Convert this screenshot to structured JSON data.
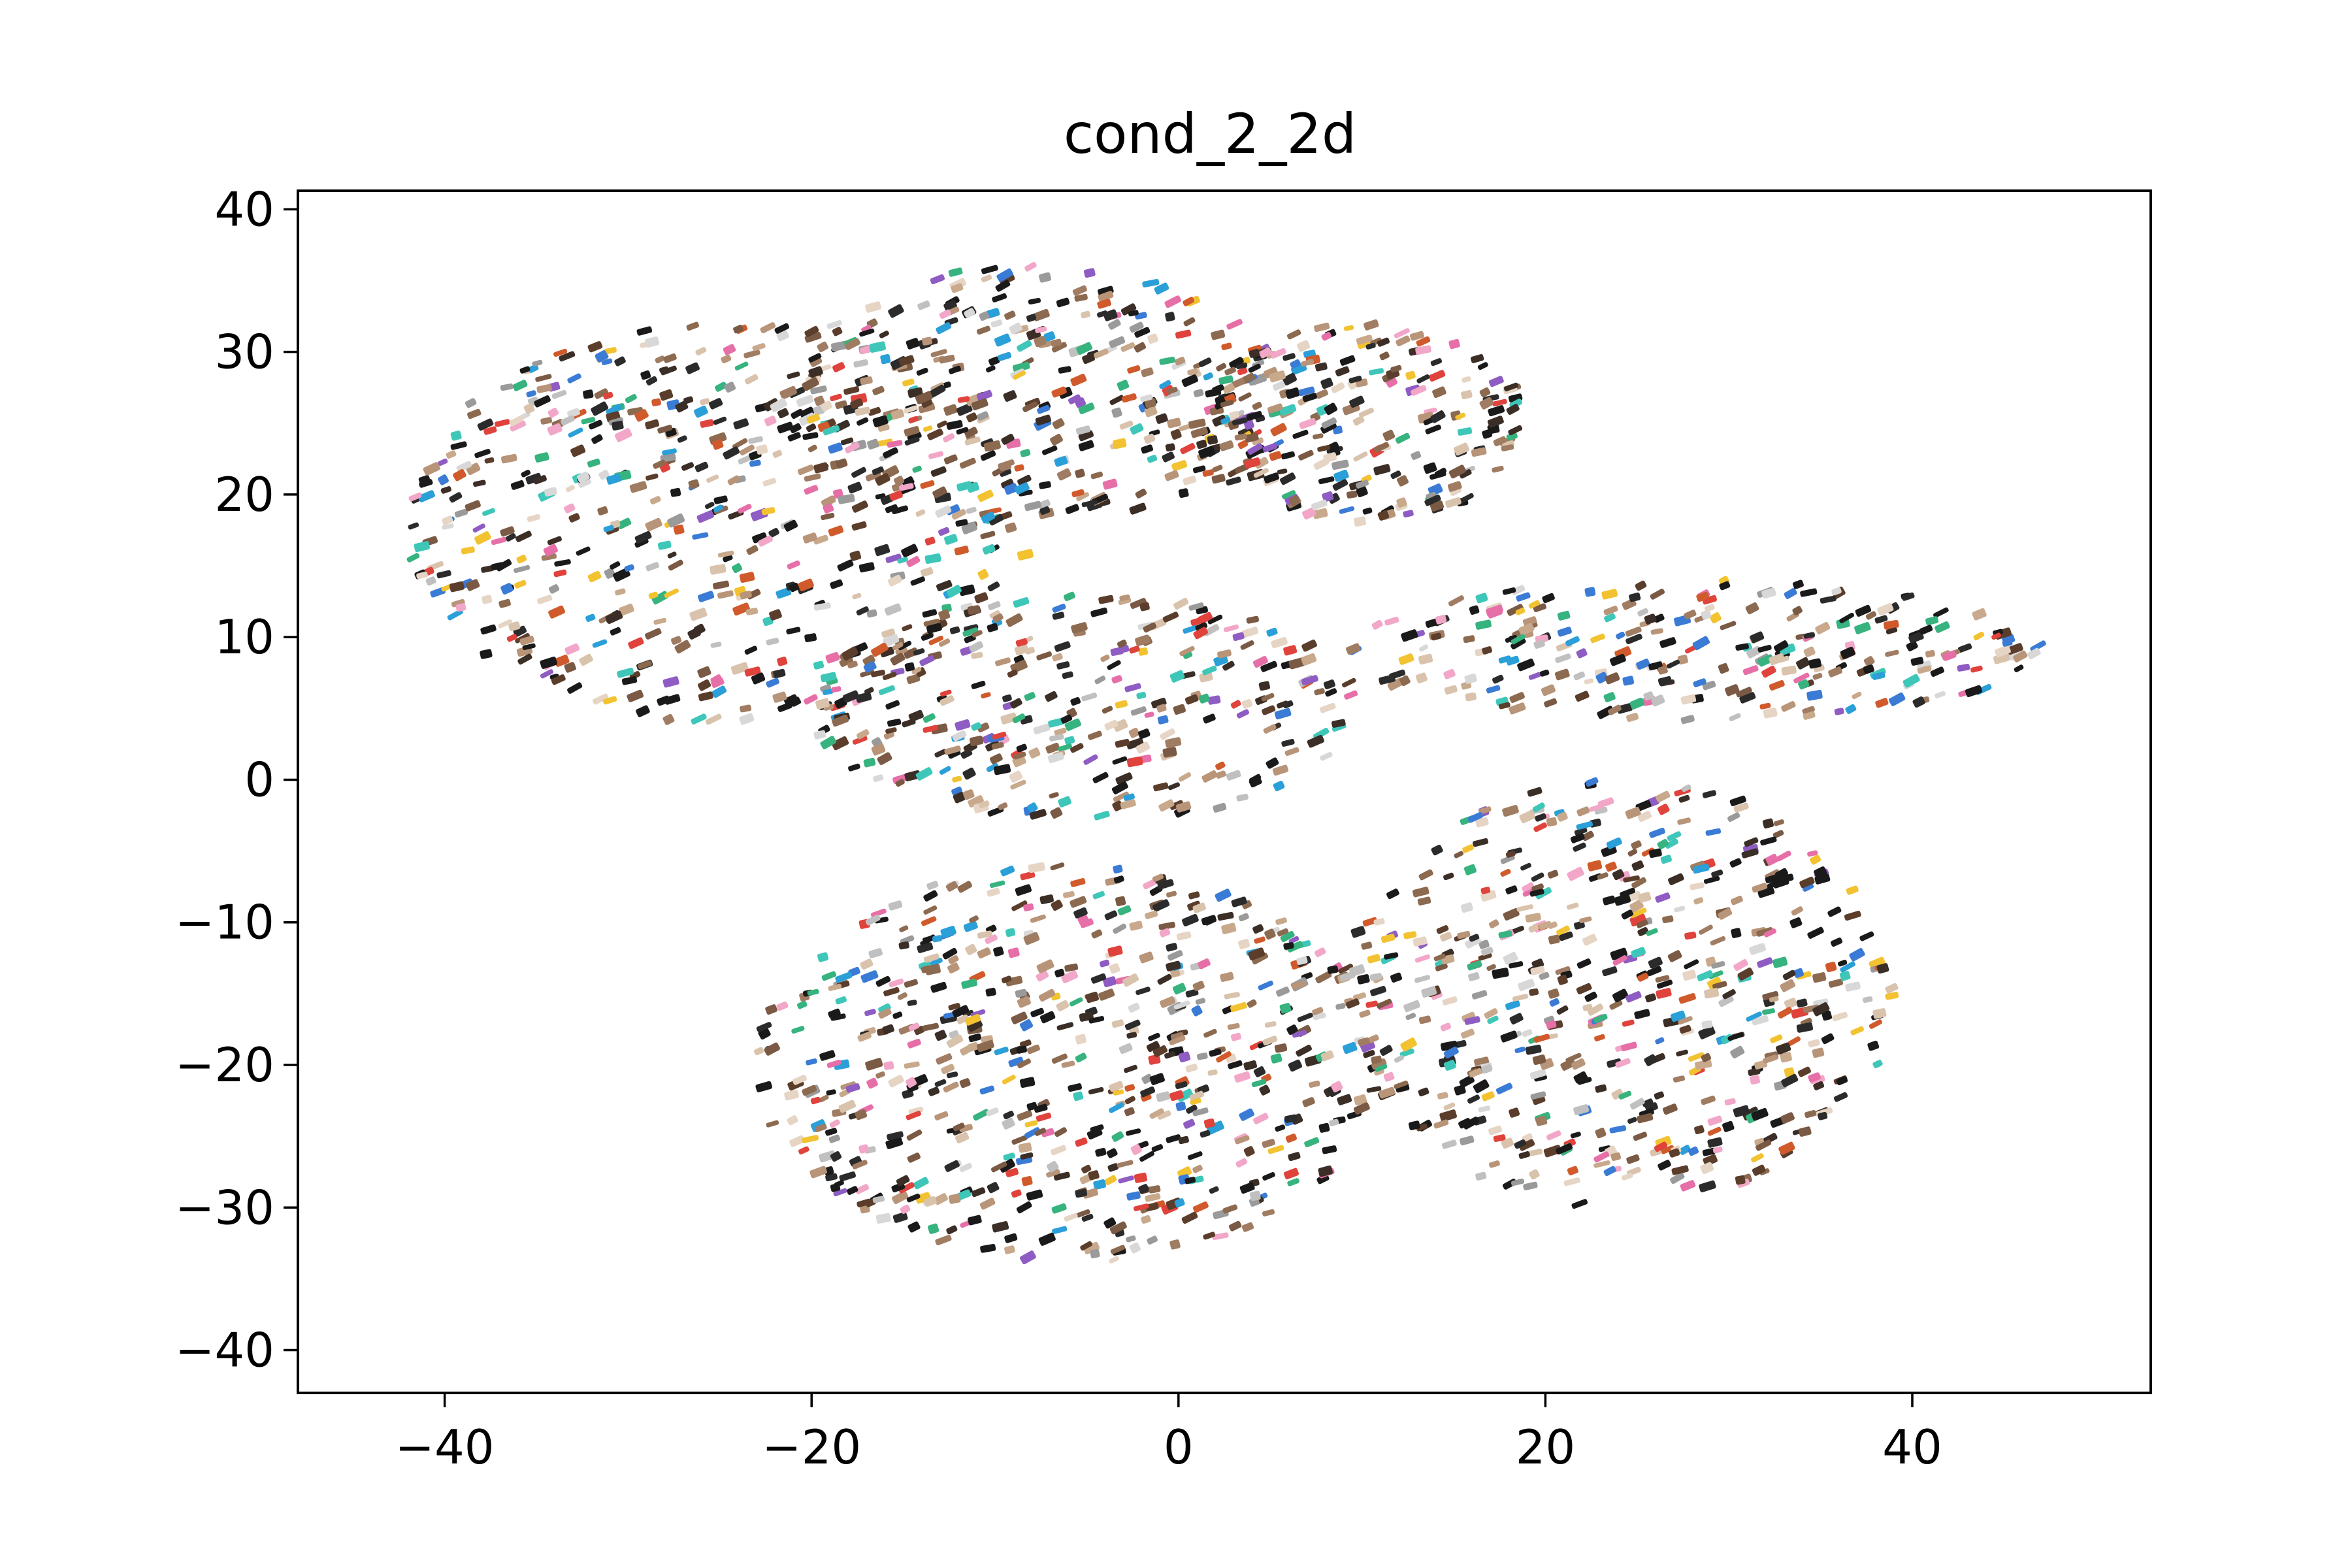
{
  "chart_data": {
    "type": "scatter",
    "title": "cond_2_2d",
    "xlabel": "",
    "ylabel": "",
    "xlim": [
      -48,
      53
    ],
    "ylim": [
      -43,
      41.3
    ],
    "grid": false,
    "legend": "none",
    "x_ticks": [
      {
        "value": -40,
        "label": "−40"
      },
      {
        "value": -20,
        "label": "−20"
      },
      {
        "value": 0,
        "label": "0"
      },
      {
        "value": 20,
        "label": "20"
      },
      {
        "value": 40,
        "label": "40"
      }
    ],
    "y_ticks": [
      {
        "value": 40,
        "label": "40"
      },
      {
        "value": 30,
        "label": "30"
      },
      {
        "value": 20,
        "label": "20"
      },
      {
        "value": 10,
        "label": "10"
      },
      {
        "value": 0,
        "label": "0"
      },
      {
        "value": -10,
        "label": "−10"
      },
      {
        "value": -20,
        "label": "−20"
      },
      {
        "value": -30,
        "label": "−30"
      },
      {
        "value": -40,
        "label": "−40"
      }
    ],
    "point_colors": [
      "#1a1a1a",
      "#2b2b2b",
      "#3a2e26",
      "#5a3d2b",
      "#7a5a44",
      "#8c6a50",
      "#a07c63",
      "#b89478",
      "#c8a98c",
      "#d9c3ad",
      "#e6d5c4",
      "#9a9a9a",
      "#c0c0c0",
      "#d8d8d8",
      "#e0423c",
      "#e66fa8",
      "#f2a6c8",
      "#3a7bd5",
      "#2a9fd8",
      "#36b37e",
      "#3ec7b9",
      "#f2c230",
      "#8e5cc2",
      "#d05a2b"
    ],
    "clusters": [
      {
        "name_hint": "top-left",
        "cx": -25,
        "cy": 18,
        "rx": 17,
        "ry": 14,
        "n": 520
      },
      {
        "name_hint": "top-center",
        "cx": -8,
        "cy": 27,
        "rx": 14,
        "ry": 9,
        "n": 340
      },
      {
        "name_hint": "top-right",
        "cx": 10,
        "cy": 25,
        "rx": 9,
        "ry": 7,
        "n": 220
      },
      {
        "name_hint": "center",
        "cx": -5,
        "cy": 5,
        "rx": 15,
        "ry": 8,
        "n": 300
      },
      {
        "name_hint": "right-arm",
        "cx": 28,
        "cy": 9,
        "rx": 19,
        "ry": 5,
        "n": 260
      },
      {
        "name_hint": "bottom-left",
        "cx": -6,
        "cy": -20,
        "rx": 17,
        "ry": 14,
        "n": 620
      },
      {
        "name_hint": "bottom-right",
        "cx": 24,
        "cy": -15,
        "rx": 15,
        "ry": 15,
        "n": 560
      }
    ]
  }
}
